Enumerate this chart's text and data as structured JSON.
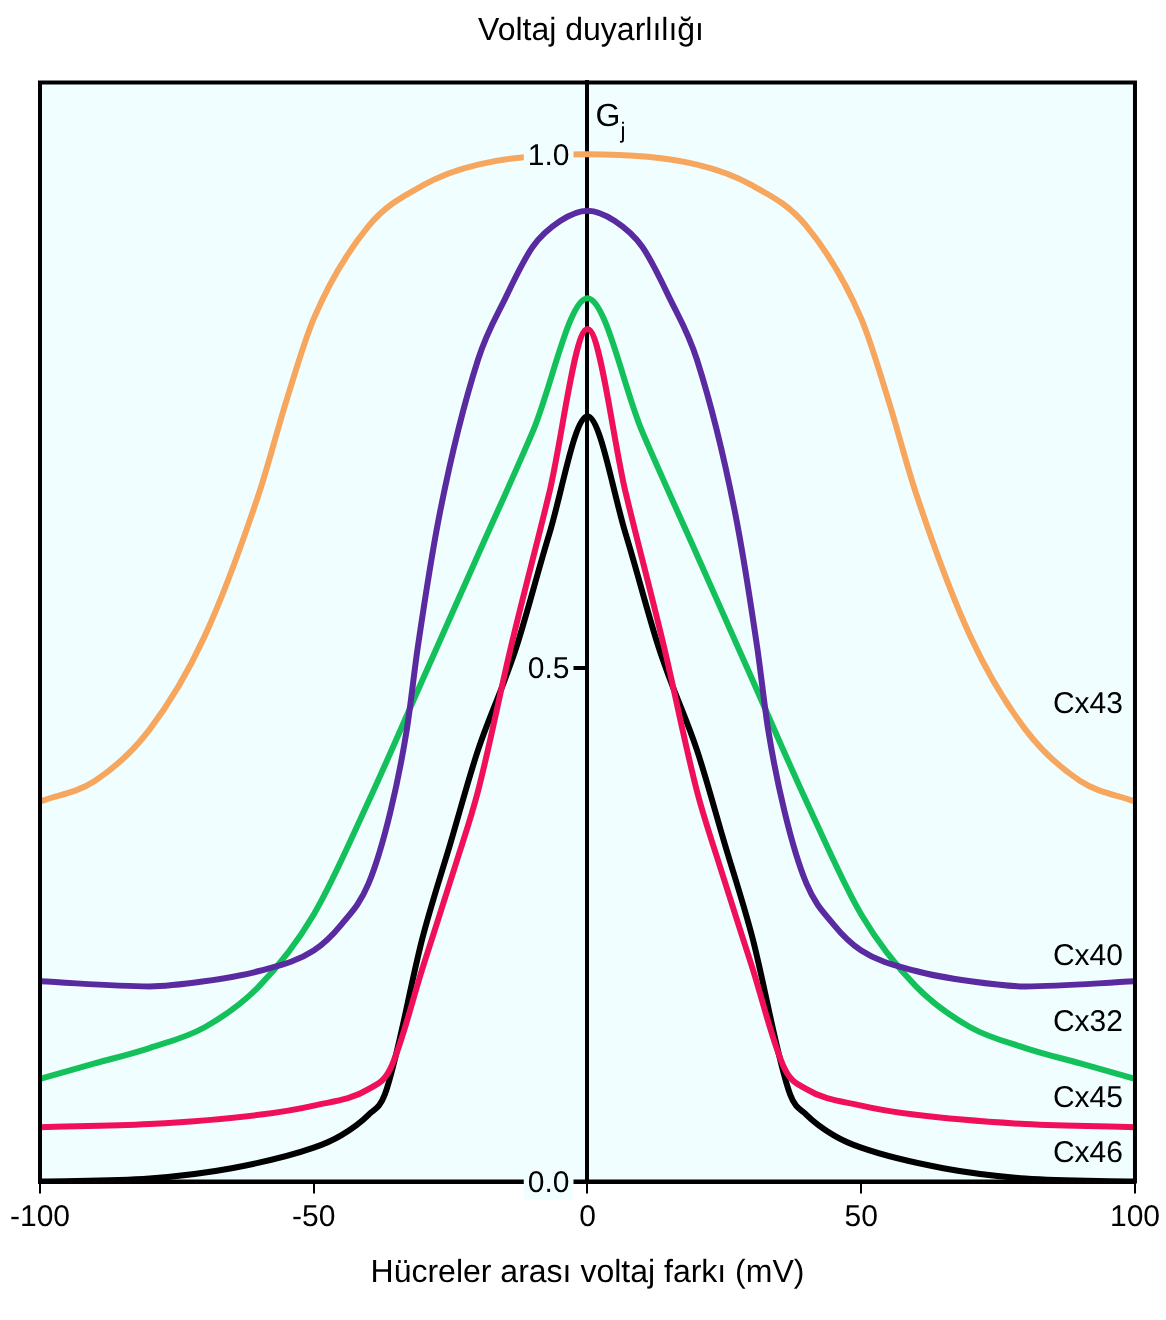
{
  "chart_data": {
    "type": "line",
    "title": "Voltaj duyarlılığı",
    "xlabel": "Hücreler arası voltaj farkı (mV)",
    "ylabel": "G$_{j}$",
    "xlim": [
      -100,
      100
    ],
    "xticks": [
      -100,
      -50,
      0,
      50,
      100
    ],
    "ylim": [
      0,
      1.07
    ],
    "yticks": [
      {
        "value": 0,
        "label": "0.0"
      },
      0.5,
      {
        "value": 1,
        "label": "1.0"
      }
    ],
    "grid": false,
    "legend": false,
    "marker": "none",
    "line_style": "solid",
    "series": [
      {
        "name": "Cx43",
        "color": "#f7a65e",
        "x": [
          -100,
          -90,
          -80,
          -70,
          -60,
          -55,
          -50,
          -40,
          -30,
          -20,
          0,
          20,
          30,
          40,
          50,
          55,
          60,
          70,
          80,
          90,
          100
        ],
        "values": [
          0.37,
          0.39,
          0.44,
          0.53,
          0.67,
          0.76,
          0.84,
          0.93,
          0.97,
          0.99,
          1.0,
          0.99,
          0.97,
          0.93,
          0.84,
          0.76,
          0.67,
          0.53,
          0.44,
          0.39,
          0.37
        ]
      },
      {
        "name": "Cx40",
        "color": "#5a2aa0",
        "x": [
          -100,
          -80,
          -70,
          -60,
          -50,
          -45,
          -40,
          -36,
          -33,
          -31,
          -27,
          -20,
          -15,
          -10,
          -5,
          0,
          5,
          10,
          15,
          20,
          27,
          31,
          33,
          36,
          40,
          45,
          50,
          60,
          70,
          80,
          100
        ],
        "values": [
          0.195,
          0.19,
          0.195,
          0.205,
          0.225,
          0.25,
          0.29,
          0.36,
          0.44,
          0.52,
          0.65,
          0.8,
          0.86,
          0.91,
          0.935,
          0.945,
          0.935,
          0.91,
          0.86,
          0.8,
          0.65,
          0.52,
          0.44,
          0.36,
          0.29,
          0.25,
          0.225,
          0.205,
          0.195,
          0.19,
          0.195
        ]
      },
      {
        "name": "Cx32",
        "color": "#14c05a",
        "x": [
          -100,
          -90,
          -80,
          -70,
          -60,
          -50,
          -40,
          -30,
          -20,
          -10,
          0,
          10,
          20,
          30,
          40,
          50,
          60,
          70,
          80,
          90,
          100
        ],
        "values": [
          0.1,
          0.115,
          0.13,
          0.15,
          0.19,
          0.26,
          0.37,
          0.49,
          0.61,
          0.73,
          0.86,
          0.73,
          0.61,
          0.49,
          0.37,
          0.26,
          0.19,
          0.15,
          0.13,
          0.115,
          0.1
        ]
      },
      {
        "name": "Cx45",
        "color": "#f0105a",
        "x": [
          -100,
          -80,
          -60,
          -50,
          -40,
          -36,
          -30,
          -24,
          -20,
          -14,
          -7,
          0,
          7,
          14,
          20,
          24,
          30,
          36,
          40,
          50,
          60,
          80,
          100
        ],
        "values": [
          0.053,
          0.056,
          0.065,
          0.074,
          0.09,
          0.11,
          0.21,
          0.31,
          0.38,
          0.52,
          0.67,
          0.83,
          0.67,
          0.52,
          0.38,
          0.31,
          0.21,
          0.11,
          0.09,
          0.074,
          0.065,
          0.056,
          0.053
        ]
      },
      {
        "name": "Cx46",
        "color": "#000000",
        "x": [
          -100,
          -80,
          -65,
          -50,
          -45,
          -40,
          -37,
          -30,
          -25,
          -20,
          -15,
          -13,
          -7,
          0,
          7,
          13,
          15,
          20,
          25,
          30,
          37,
          40,
          45,
          50,
          65,
          80,
          100
        ],
        "values": [
          0,
          0.003,
          0.013,
          0.033,
          0.045,
          0.065,
          0.085,
          0.24,
          0.33,
          0.42,
          0.49,
          0.52,
          0.63,
          0.745,
          0.63,
          0.52,
          0.49,
          0.42,
          0.33,
          0.24,
          0.085,
          0.065,
          0.045,
          0.033,
          0.013,
          0.003,
          0
        ]
      }
    ]
  }
}
